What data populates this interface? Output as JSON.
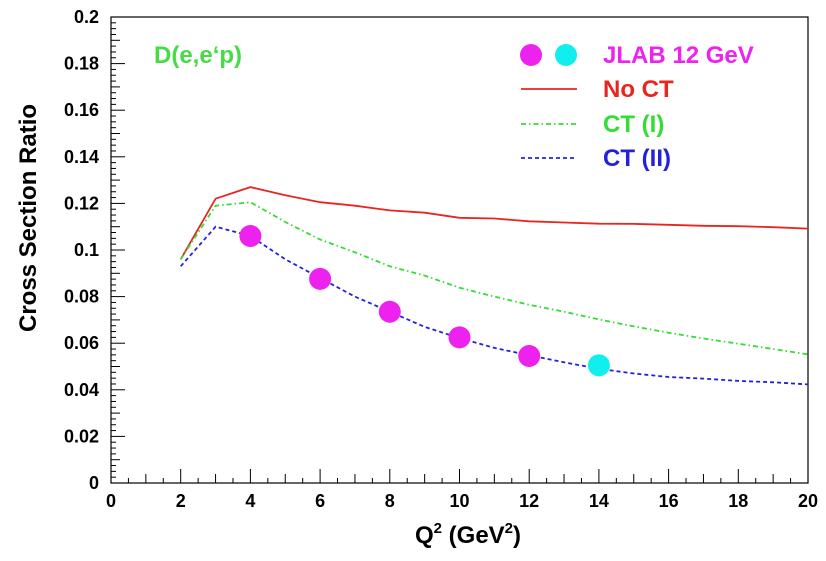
{
  "chart_data": {
    "type": "line",
    "reaction_label": "D(e,e‘p)",
    "xlabel": "Q",
    "xlabel_sup": "2",
    "xlabel_mid": " (GeV",
    "xlabel_sup2": "2",
    "xlabel_end": ")",
    "ylabel": "Cross Section Ratio",
    "xlim": [
      0,
      20
    ],
    "ylim": [
      0,
      0.2
    ],
    "x_ticks": [
      0,
      2,
      4,
      6,
      8,
      10,
      12,
      14,
      16,
      18,
      20
    ],
    "x_tick_labels": [
      "0",
      "2",
      "4",
      "6",
      "8",
      "10",
      "12",
      "14",
      "16",
      "18",
      "20"
    ],
    "y_ticks": [
      0,
      0.02,
      0.04,
      0.06,
      0.08,
      0.1,
      0.12,
      0.14,
      0.16,
      0.18,
      0.2
    ],
    "y_tick_labels": [
      "0",
      "0.02",
      "0.04",
      "0.06",
      "0.08",
      "0.1",
      "0.12",
      "0.14",
      "0.16",
      "0.18",
      "0.2"
    ],
    "grid": false,
    "legend_position": "top-right",
    "series": [
      {
        "name": "No CT",
        "style": "solid",
        "color": "#e8261f",
        "x": [
          2,
          3,
          4,
          5,
          6,
          7,
          8,
          9,
          10,
          11,
          12,
          13,
          14,
          15,
          16,
          17,
          18,
          19,
          20
        ],
        "y": [
          0.096,
          0.122,
          0.127,
          0.1235,
          0.1205,
          0.119,
          0.117,
          0.116,
          0.1138,
          0.1135,
          0.1123,
          0.1118,
          0.1113,
          0.1112,
          0.1108,
          0.1104,
          0.1102,
          0.1098,
          0.1092
        ]
      },
      {
        "name": "CT (I)",
        "style": "dashdot",
        "color": "#33dd33",
        "x": [
          2,
          3,
          4,
          5,
          6,
          7,
          8,
          9,
          10,
          11,
          12,
          13,
          14,
          15,
          16,
          17,
          18,
          19,
          20
        ],
        "y": [
          0.096,
          0.119,
          0.1205,
          0.112,
          0.1045,
          0.099,
          0.093,
          0.089,
          0.0838,
          0.08,
          0.0765,
          0.0735,
          0.0702,
          0.0672,
          0.0645,
          0.062,
          0.0598,
          0.0575,
          0.0552
        ]
      },
      {
        "name": "CT (II)",
        "style": "dashed",
        "color": "#2222dd",
        "x": [
          2,
          3,
          4,
          5,
          6,
          7,
          8,
          9,
          10,
          11,
          12,
          13,
          14,
          15,
          16,
          17,
          18,
          19,
          20
        ],
        "y": [
          0.093,
          0.11,
          0.106,
          0.096,
          0.088,
          0.08,
          0.0735,
          0.067,
          0.0622,
          0.058,
          0.0548,
          0.0518,
          0.049,
          0.047,
          0.0455,
          0.0448,
          0.0438,
          0.0432,
          0.0423
        ]
      }
    ],
    "points": {
      "name": "JLAB 12 GeV",
      "color": "#ee22ee",
      "x": [
        4,
        6,
        8,
        10,
        12,
        14
      ],
      "y": [
        0.106,
        0.0876,
        0.0735,
        0.0625,
        0.0545,
        0.0505
      ],
      "colors": [
        "#ee22ee",
        "#ee22ee",
        "#ee22ee",
        "#ee22ee",
        "#ee22ee",
        "#11eeee"
      ]
    },
    "legend_marker_colors": [
      "#ee22ee",
      "#11eeee"
    ]
  }
}
